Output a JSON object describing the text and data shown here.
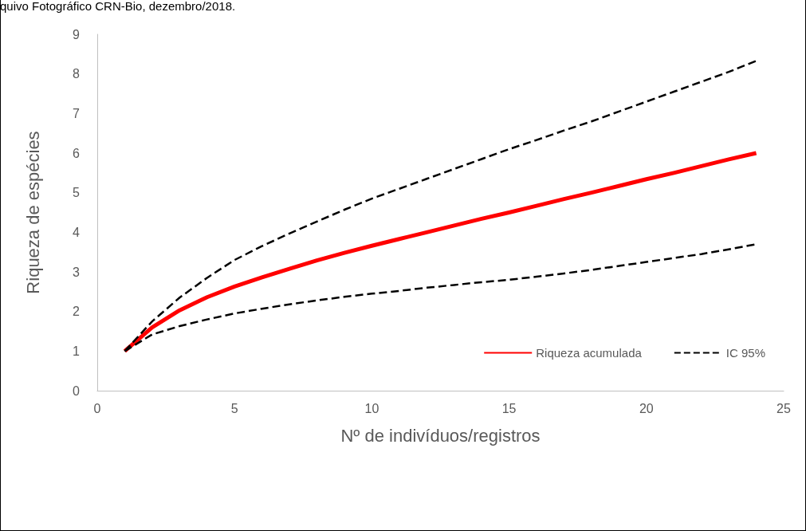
{
  "chart_data": {
    "type": "line",
    "xlabel": "Nº de indivíduos/registros",
    "ylabel": "Riqueza de espécies",
    "annotations": [
      "quivo Fotográfico CRN-Bio, dezembro/2018."
    ],
    "x": [
      1,
      2,
      3,
      4,
      5,
      6,
      7,
      8,
      9,
      10,
      11,
      12,
      13,
      14,
      15,
      16,
      17,
      18,
      19,
      20,
      21,
      22,
      23,
      24
    ],
    "series": [
      {
        "name": "Riqueza acumulada",
        "color": "#ff0000",
        "line_style": "solid",
        "values": [
          1,
          1.6,
          2.03,
          2.36,
          2.63,
          2.86,
          3.08,
          3.29,
          3.48,
          3.66,
          3.83,
          4.0,
          4.17,
          4.34,
          4.5,
          4.67,
          4.84,
          5.0,
          5.17,
          5.34,
          5.5,
          5.67,
          5.84,
          6.0
        ]
      },
      {
        "name": "IC 95%",
        "color": "#000000",
        "line_style": "dashed",
        "values": [
          1,
          1.75,
          2.35,
          2.85,
          3.3,
          3.65,
          3.97,
          4.27,
          4.57,
          4.85,
          5.1,
          5.35,
          5.6,
          5.85,
          6.1,
          6.33,
          6.57,
          6.8,
          7.05,
          7.3,
          7.55,
          7.8,
          8.05,
          8.33
        ]
      },
      {
        "color": "#000000",
        "line_style": "dashed",
        "values": [
          1,
          1.42,
          1.63,
          1.8,
          1.95,
          2.07,
          2.18,
          2.28,
          2.37,
          2.45,
          2.52,
          2.6,
          2.67,
          2.74,
          2.8,
          2.88,
          2.96,
          3.05,
          3.15,
          3.25,
          3.35,
          3.45,
          3.57,
          3.7
        ]
      }
    ],
    "xlim": [
      0,
      25
    ],
    "xticks": [
      0,
      5,
      10,
      15,
      20,
      25
    ],
    "ylim": [
      0,
      9
    ],
    "yticks": [
      0,
      1,
      2,
      3,
      4,
      5,
      6,
      7,
      8,
      9
    ],
    "grid": false,
    "legend": "right",
    "marker": "none"
  }
}
